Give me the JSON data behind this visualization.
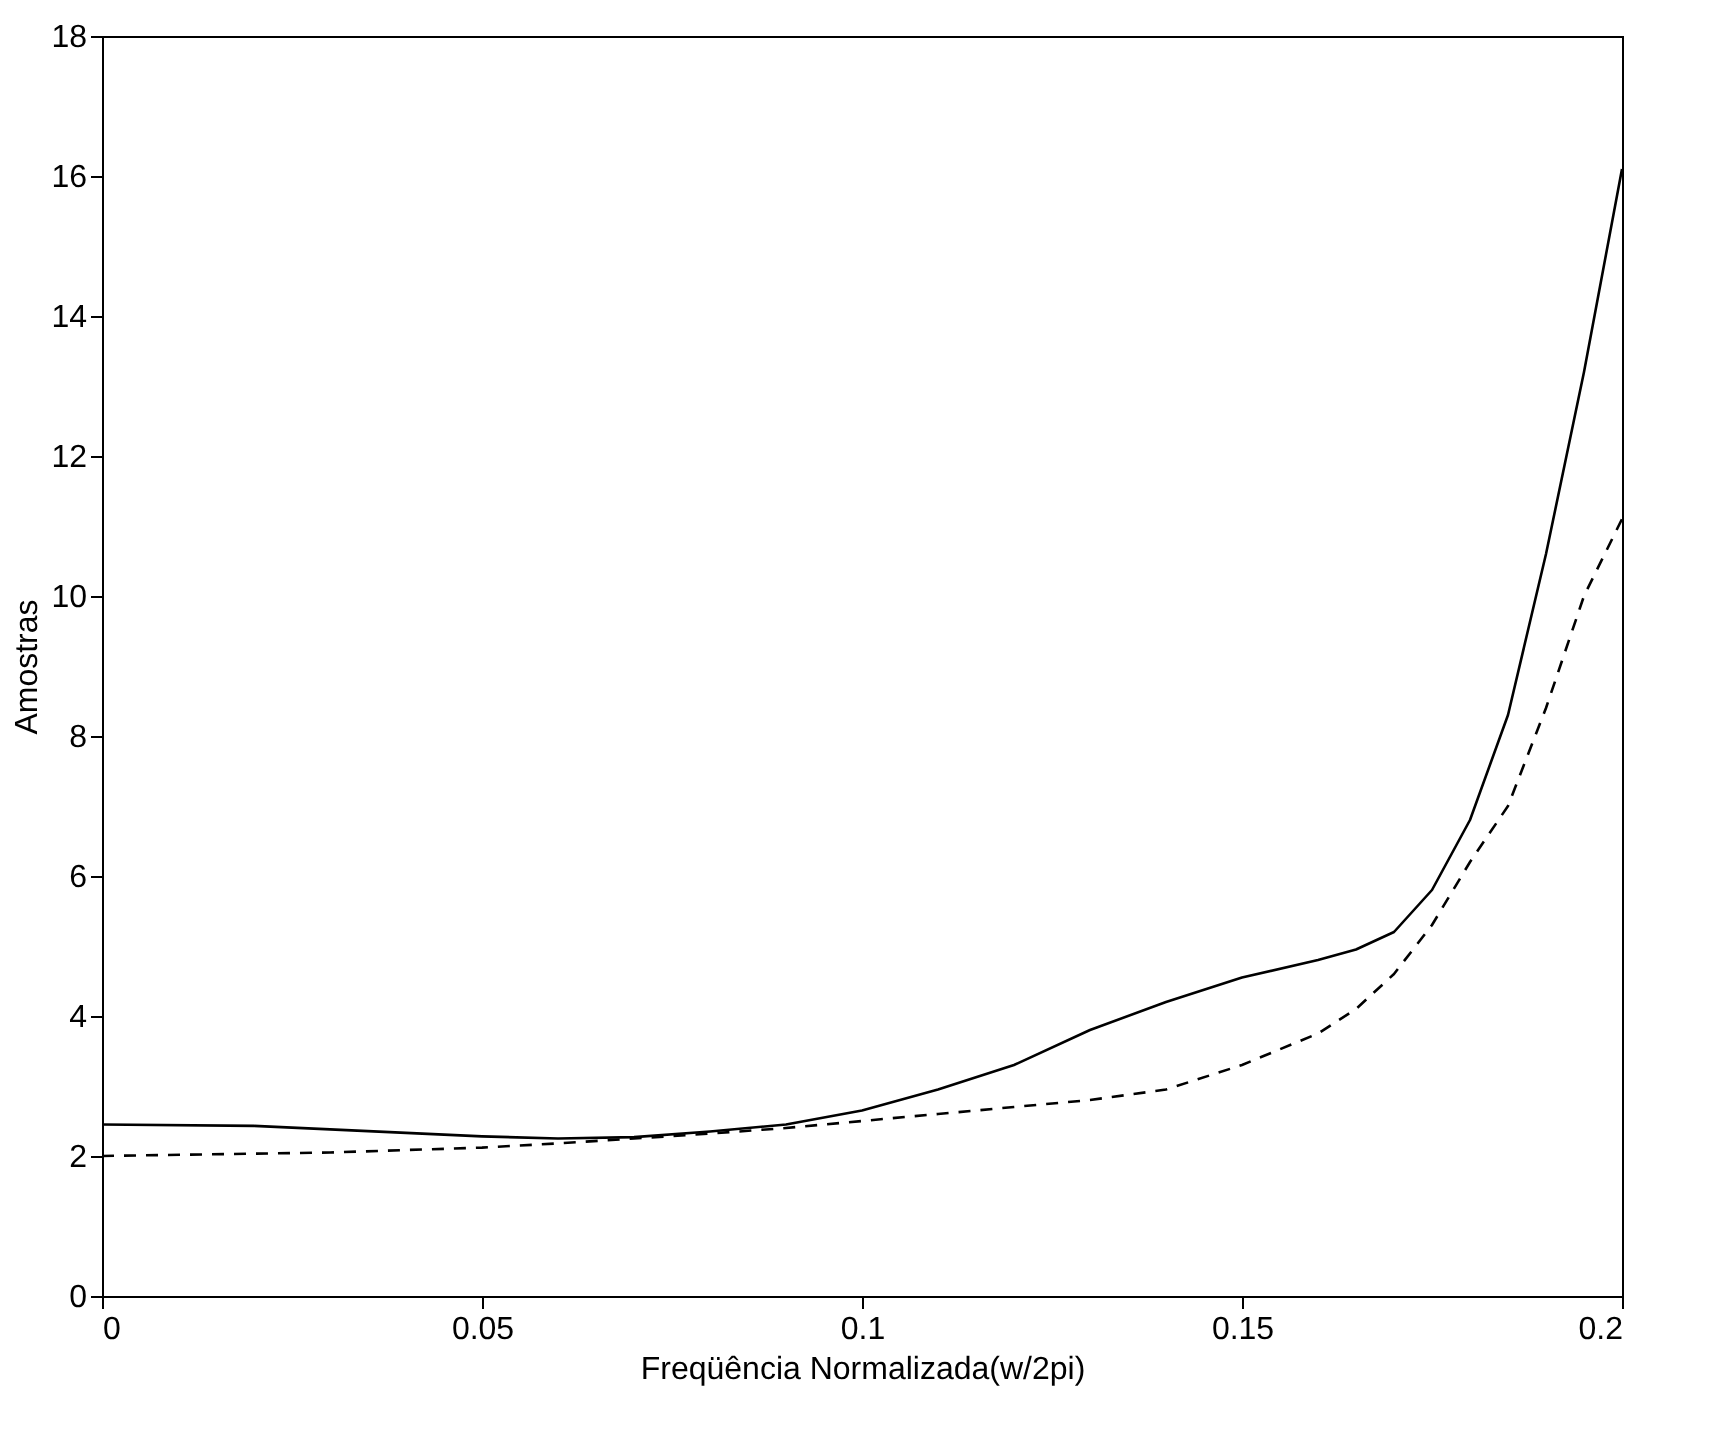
{
  "chart_data": {
    "type": "line",
    "xlabel": "Freqüência Normalizada(w/2pi)",
    "ylabel": "Amostras",
    "xlim": [
      0,
      0.2
    ],
    "xticks": [
      0,
      0.05,
      0.1,
      0.15,
      0.2
    ],
    "ylim": [
      0,
      18
    ],
    "yticks": [
      0,
      2,
      4,
      6,
      8,
      10,
      12,
      14,
      16,
      18
    ],
    "grid": false,
    "marker": "none",
    "series": [
      {
        "color": "#000000",
        "line_style": "solid",
        "x": [
          0,
          0.02,
          0.04,
          0.05,
          0.06,
          0.07,
          0.08,
          0.09,
          0.1,
          0.11,
          0.12,
          0.13,
          0.14,
          0.15,
          0.16,
          0.165,
          0.17,
          0.175,
          0.18,
          0.185,
          0.19,
          0.195,
          0.2
        ],
        "values": [
          2.45,
          2.43,
          2.33,
          2.28,
          2.25,
          2.27,
          2.35,
          2.45,
          2.65,
          2.95,
          3.3,
          3.8,
          4.2,
          4.55,
          4.8,
          4.95,
          5.2,
          5.8,
          6.8,
          8.3,
          10.6,
          13.2,
          16.1
        ]
      },
      {
        "color": "#000000",
        "line_style": "dashed",
        "x": [
          0,
          0.03,
          0.05,
          0.06,
          0.07,
          0.08,
          0.09,
          0.1,
          0.11,
          0.12,
          0.13,
          0.14,
          0.15,
          0.16,
          0.165,
          0.17,
          0.175,
          0.18,
          0.185,
          0.19,
          0.195,
          0.2
        ],
        "values": [
          2.0,
          2.05,
          2.12,
          2.18,
          2.25,
          2.32,
          2.4,
          2.5,
          2.6,
          2.7,
          2.8,
          2.95,
          3.3,
          3.75,
          4.1,
          4.6,
          5.3,
          6.2,
          7.0,
          8.4,
          10.0,
          11.1
        ]
      }
    ]
  }
}
